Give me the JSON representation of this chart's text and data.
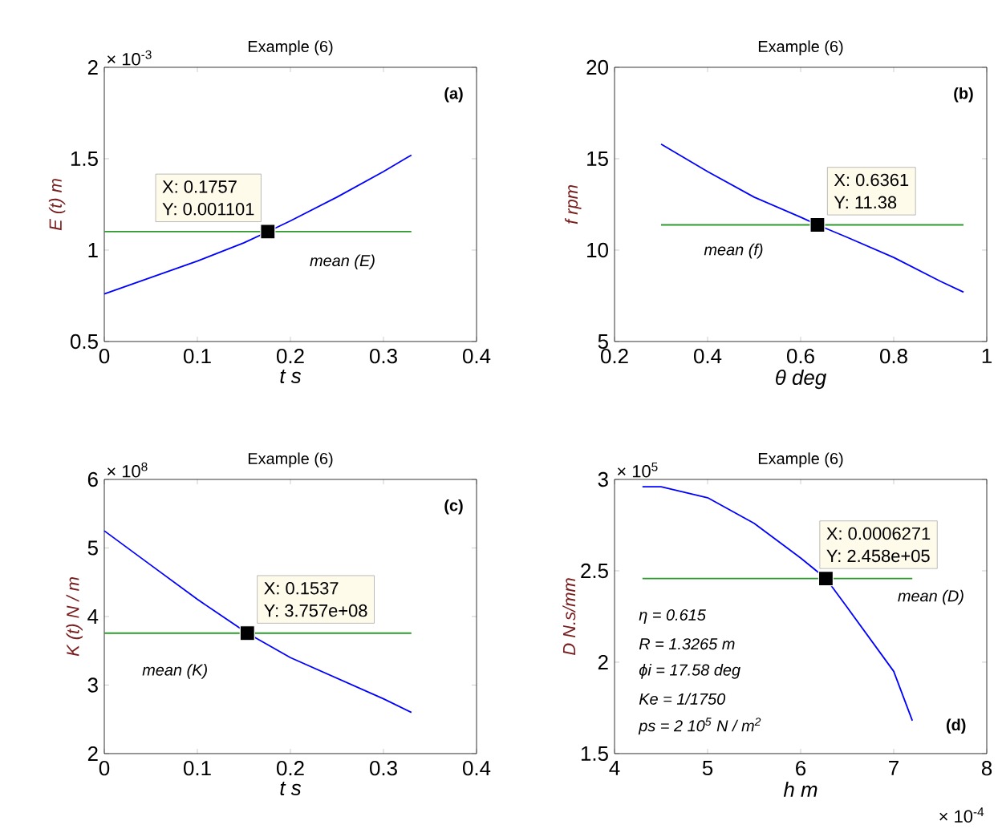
{
  "chart_data": [
    {
      "type": "line",
      "title": "Example (6)",
      "xlabel": "t s",
      "ylabel": "E (t) m",
      "xlim": [
        0,
        0.4
      ],
      "xticks": [
        0,
        0.1,
        0.2,
        0.3,
        0.4
      ],
      "ylim": [
        0.5,
        2
      ],
      "yticks": [
        0.5,
        1,
        1.5,
        2
      ],
      "series": [
        {
          "color": "#0000ff",
          "x": [
            0,
            0.05,
            0.1,
            0.15,
            0.1757,
            0.2,
            0.25,
            0.3,
            0.33
          ],
          "values": [
            0.76,
            0.85,
            0.94,
            1.04,
            1.101,
            1.16,
            1.29,
            1.43,
            1.52
          ]
        },
        {
          "name": "mean (E)",
          "color": "#2e9a2e",
          "x": [
            0,
            0.33
          ],
          "values": [
            1.101,
            1.101
          ]
        },
        {
          "type": "scatter",
          "marker": "square",
          "color": "#000000",
          "x": [
            0.1757
          ],
          "values": [
            1.101
          ]
        }
      ],
      "annotations": [
        "(a)",
        "× 10$^{-3}$",
        {
          "text": "X: 0.1757",
          "x": 0.1757,
          "y": 1.101
        },
        {
          "text": "Y: 0.001101",
          "x": 0.1757,
          "y": 1.101
        }
      ]
    },
    {
      "type": "line",
      "title": "Example (6)",
      "xlabel": "θ deg",
      "ylabel": "f rpm",
      "xlim": [
        0.2,
        1
      ],
      "xticks": [
        0.2,
        0.4,
        0.6,
        0.8,
        1
      ],
      "ylim": [
        5,
        20
      ],
      "yticks": [
        5,
        10,
        15,
        20
      ],
      "series": [
        {
          "color": "#0000ff",
          "x": [
            0.3,
            0.4,
            0.5,
            0.6,
            0.6361,
            0.7,
            0.8,
            0.9,
            0.95
          ],
          "values": [
            15.8,
            14.3,
            12.9,
            11.8,
            11.38,
            10.7,
            9.6,
            8.3,
            7.7
          ]
        },
        {
          "name": "mean (f)",
          "color": "#2e9a2e",
          "x": [
            0.3,
            0.95
          ],
          "values": [
            11.38,
            11.38
          ]
        },
        {
          "type": "scatter",
          "marker": "square",
          "color": "#000000",
          "x": [
            0.6361
          ],
          "values": [
            11.38
          ]
        }
      ],
      "annotations": [
        "(b)",
        {
          "text": "X: 0.6361",
          "x": 0.6361,
          "y": 11.38
        },
        {
          "text": "Y: 11.38",
          "x": 0.6361,
          "y": 11.38
        }
      ]
    },
    {
      "type": "line",
      "title": "Example (6)",
      "xlabel": "t s",
      "ylabel": "K (t) N / m",
      "xlim": [
        0,
        0.4
      ],
      "xticks": [
        0,
        0.1,
        0.2,
        0.3,
        0.4
      ],
      "ylim": [
        2,
        6
      ],
      "yticks": [
        2,
        3,
        4,
        5,
        6
      ],
      "series": [
        {
          "color": "#0000ff",
          "x": [
            0,
            0.05,
            0.1,
            0.1537,
            0.2,
            0.25,
            0.3,
            0.33
          ],
          "values": [
            5.25,
            4.75,
            4.25,
            3.757,
            3.4,
            3.1,
            2.8,
            2.6
          ]
        },
        {
          "name": "mean (K)",
          "color": "#2e9a2e",
          "x": [
            0,
            0.33
          ],
          "values": [
            3.757,
            3.757
          ]
        },
        {
          "type": "scatter",
          "marker": "square",
          "color": "#000000",
          "x": [
            0.1537
          ],
          "values": [
            3.757
          ]
        }
      ],
      "annotations": [
        "(c)",
        "× 10$^{8}$",
        {
          "text": "X: 0.1537",
          "x": 0.1537,
          "y": 3.757
        },
        {
          "text": "Y: 3.757e+08",
          "x": 0.1537,
          "y": 3.757
        }
      ]
    },
    {
      "type": "line",
      "title": "Example (6)",
      "xlabel": "h m",
      "ylabel": "D N.s/mm",
      "xlim": [
        4,
        8
      ],
      "xticks": [
        4,
        5,
        6,
        7,
        8
      ],
      "ylim": [
        1.5,
        3
      ],
      "yticks": [
        1.5,
        2,
        2.5,
        3
      ],
      "series": [
        {
          "color": "#0000ff",
          "x": [
            4.3,
            4.5,
            5,
            5.5,
            6,
            6.271,
            6.5,
            7,
            7.2
          ],
          "values": [
            2.96,
            2.96,
            2.9,
            2.76,
            2.57,
            2.458,
            2.3,
            1.95,
            1.68
          ]
        },
        {
          "name": "mean (D)",
          "color": "#2e9a2e",
          "x": [
            4.3,
            7.2
          ],
          "values": [
            2.458,
            2.458
          ]
        },
        {
          "type": "scatter",
          "marker": "square",
          "color": "#000000",
          "x": [
            6.271
          ],
          "values": [
            2.458
          ]
        }
      ],
      "annotations": [
        "× 10$^{5}$",
        "η = 0.615",
        "R = 1.3265 m",
        "ϕi = 17.58 deg",
        "Ke = 1/1750",
        "ps = 2 10$^{5}$ N / m$^{2}$",
        "(d)",
        "× 10$^{-4}$",
        {
          "text": "X: 0.0006271",
          "x": 6.271,
          "y": 2.458
        },
        {
          "text": "Y: 2.458e+05",
          "x": 6.271,
          "y": 2.458
        }
      ]
    }
  ]
}
